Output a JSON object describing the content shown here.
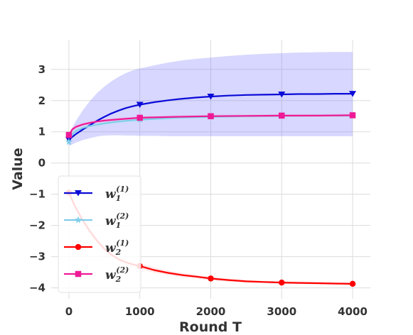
{
  "chart_data": {
    "type": "line",
    "title": "",
    "xlabel": "Round T",
    "ylabel": "Value",
    "xlim": [
      -250,
      4250
    ],
    "ylim": [
      -4.35,
      3.95
    ],
    "xticks": [
      0,
      1000,
      2000,
      3000,
      4000
    ],
    "xtick_labels": [
      "0",
      "1000",
      "2000",
      "3000",
      "4000"
    ],
    "yticks": [
      3,
      2,
      1,
      0,
      -1,
      -2,
      -3,
      -4
    ],
    "ytick_labels": [
      "3",
      "2",
      "1",
      "0",
      "−1",
      "−2",
      "−3",
      "−4"
    ],
    "grid": true,
    "legend_position": "lower-left",
    "series": [
      {
        "legend_base": "w",
        "legend_sub": "1",
        "legend_sup": "(1)",
        "color": "#0a0ad8",
        "marker": "triangle-down",
        "band_color": "#7070ff",
        "x": [
          0,
          50,
          100,
          200,
          300,
          400,
          500,
          600,
          700,
          800,
          900,
          1000,
          1200,
          1400,
          1600,
          1800,
          2000,
          2250,
          2500,
          2750,
          3000,
          3250,
          3500,
          3750,
          4000
        ],
        "values": [
          0.75,
          0.84,
          0.93,
          1.08,
          1.22,
          1.36,
          1.48,
          1.59,
          1.68,
          1.76,
          1.82,
          1.87,
          1.95,
          2.01,
          2.06,
          2.1,
          2.13,
          2.16,
          2.18,
          2.19,
          2.2,
          2.21,
          2.21,
          2.22,
          2.22
        ],
        "band_upper": [
          0.95,
          1.15,
          1.35,
          1.7,
          2.0,
          2.25,
          2.45,
          2.62,
          2.76,
          2.88,
          2.97,
          3.03,
          3.13,
          3.22,
          3.29,
          3.34,
          3.38,
          3.43,
          3.47,
          3.5,
          3.52,
          3.54,
          3.55,
          3.56,
          3.56
        ],
        "band_lower": [
          0.55,
          0.6,
          0.66,
          0.74,
          0.8,
          0.85,
          0.88,
          0.89,
          0.89,
          0.88,
          0.88,
          0.87,
          0.87,
          0.86,
          0.86,
          0.86,
          0.86,
          0.86,
          0.86,
          0.86,
          0.86,
          0.86,
          0.86,
          0.86,
          0.86
        ],
        "marker_x": [
          0,
          1000,
          2000,
          3000,
          4000
        ],
        "marker_y": [
          0.75,
          1.87,
          2.13,
          2.2,
          2.22
        ]
      },
      {
        "legend_base": "w",
        "legend_sub": "1",
        "legend_sup": "(2)",
        "color": "#7fcdea",
        "marker": "star",
        "band_color": "#bfe6f5",
        "x": [
          0,
          50,
          100,
          200,
          300,
          400,
          500,
          700,
          1000,
          1500,
          2000,
          2500,
          3000,
          3500,
          4000
        ],
        "values": [
          0.68,
          0.92,
          1.03,
          1.13,
          1.19,
          1.23,
          1.27,
          1.33,
          1.39,
          1.45,
          1.48,
          1.5,
          1.51,
          1.52,
          1.52
        ],
        "band_upper": [
          0.78,
          1.0,
          1.1,
          1.2,
          1.26,
          1.3,
          1.34,
          1.4,
          1.46,
          1.52,
          1.55,
          1.56,
          1.57,
          1.58,
          1.58
        ],
        "band_lower": [
          0.58,
          0.84,
          0.96,
          1.06,
          1.12,
          1.16,
          1.2,
          1.26,
          1.32,
          1.38,
          1.41,
          1.44,
          1.45,
          1.46,
          1.46
        ],
        "marker_x": [
          0,
          1000
        ],
        "marker_y": [
          0.68,
          1.39
        ]
      },
      {
        "legend_base": "w",
        "legend_sub": "2",
        "legend_sup": "(1)",
        "color": "#ff0000",
        "marker": "circle",
        "band_color": "#ffb0b0",
        "x": [
          0,
          100,
          200,
          300,
          400,
          500,
          600,
          700,
          800,
          900,
          1000,
          1200,
          1400,
          1600,
          1800,
          2000,
          2250,
          2500,
          2750,
          3000,
          3250,
          3500,
          3750,
          4000
        ],
        "values": [
          -0.95,
          -1.45,
          -1.85,
          -2.2,
          -2.5,
          -2.75,
          -2.94,
          -3.08,
          -3.18,
          -3.25,
          -3.3,
          -3.43,
          -3.52,
          -3.59,
          -3.64,
          -3.7,
          -3.75,
          -3.79,
          -3.81,
          -3.83,
          -3.84,
          -3.85,
          -3.86,
          -3.87
        ],
        "band_upper": [
          -0.85,
          -1.35,
          -1.75,
          -2.1,
          -2.4,
          -2.65,
          -2.84,
          -2.98,
          -3.08,
          -3.15,
          -3.21,
          -3.35,
          -3.45,
          -3.52,
          -3.58,
          -3.64,
          -3.7,
          -3.74,
          -3.77,
          -3.79,
          -3.8,
          -3.81,
          -3.82,
          -3.83
        ],
        "band_lower": [
          -1.05,
          -1.55,
          -1.95,
          -2.3,
          -2.6,
          -2.85,
          -3.04,
          -3.18,
          -3.28,
          -3.35,
          -3.39,
          -3.51,
          -3.59,
          -3.66,
          -3.7,
          -3.76,
          -3.8,
          -3.84,
          -3.85,
          -3.87,
          -3.88,
          -3.89,
          -3.9,
          -3.91
        ],
        "marker_x": [
          0,
          1000,
          2000,
          3000,
          4000
        ],
        "marker_y": [
          -0.95,
          -3.3,
          -3.7,
          -3.83,
          -3.87
        ]
      },
      {
        "legend_base": "w",
        "legend_sub": "2",
        "legend_sup": "(2)",
        "color": "#ee1a96",
        "marker": "square",
        "band_color": "#f8a8d2",
        "x": [
          0,
          50,
          100,
          200,
          300,
          400,
          500,
          700,
          1000,
          1500,
          2000,
          2500,
          3000,
          3500,
          4000
        ],
        "values": [
          0.9,
          1.08,
          1.16,
          1.24,
          1.29,
          1.33,
          1.36,
          1.4,
          1.45,
          1.48,
          1.5,
          1.51,
          1.52,
          1.52,
          1.53
        ],
        "band_upper": [
          0.98,
          1.14,
          1.22,
          1.3,
          1.34,
          1.38,
          1.41,
          1.45,
          1.5,
          1.53,
          1.55,
          1.56,
          1.57,
          1.57,
          1.58
        ],
        "band_lower": [
          0.82,
          1.02,
          1.1,
          1.18,
          1.24,
          1.28,
          1.31,
          1.35,
          1.4,
          1.43,
          1.45,
          1.46,
          1.47,
          1.47,
          1.48
        ],
        "marker_x": [
          0,
          1000,
          2000,
          3000,
          4000
        ],
        "marker_y": [
          0.9,
          1.45,
          1.5,
          1.52,
          1.53
        ]
      }
    ]
  }
}
